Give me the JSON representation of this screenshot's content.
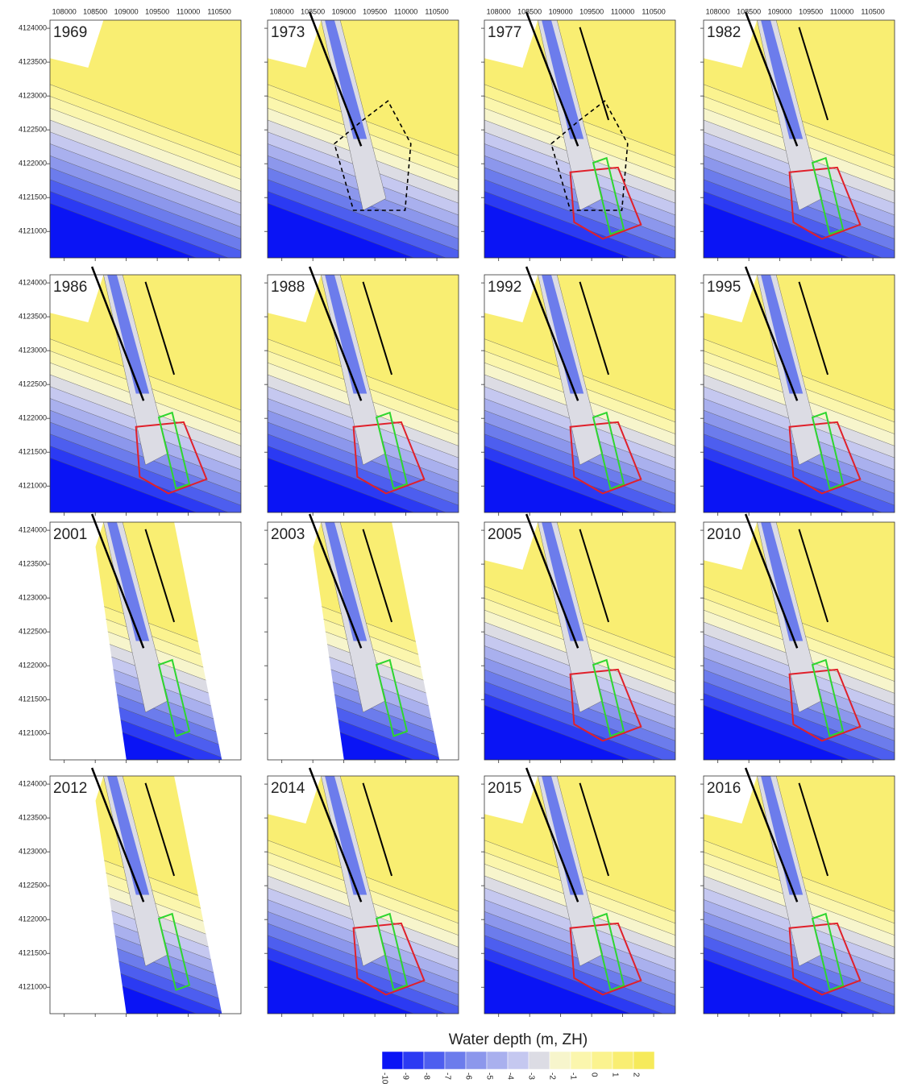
{
  "figure": {
    "xticks": [
      108000,
      108500,
      109000,
      109500,
      110000,
      110500
    ],
    "yticks": [
      4124000,
      4123500,
      4123000,
      4122500,
      4122000,
      4121500,
      4121000
    ],
    "xlim": [
      107770,
      110850
    ],
    "ylim": [
      4120610,
      4124120
    ],
    "panels": [
      "1969",
      "1973",
      "1977",
      "1982",
      "1986",
      "1988",
      "1992",
      "1995",
      "2001",
      "2003",
      "2005",
      "2010",
      "2012",
      "2014",
      "2015",
      "2016"
    ],
    "legend": {
      "title": "Water depth (m, ZH)",
      "labels": [
        -10,
        -9,
        -8,
        -7,
        -6,
        -5,
        -4,
        -3,
        -2,
        -1,
        0,
        1,
        2
      ],
      "colors": [
        "#0a14f5",
        "#2b3af3",
        "#4d5eef",
        "#6c7cec",
        "#8c97ec",
        "#a9b0ee",
        "#c5c8f0",
        "#dcdce4",
        "#f7f5cc",
        "#fbf6ad",
        "#fbf38f",
        "#f9ee72",
        "#f6ea5a"
      ]
    }
  }
}
